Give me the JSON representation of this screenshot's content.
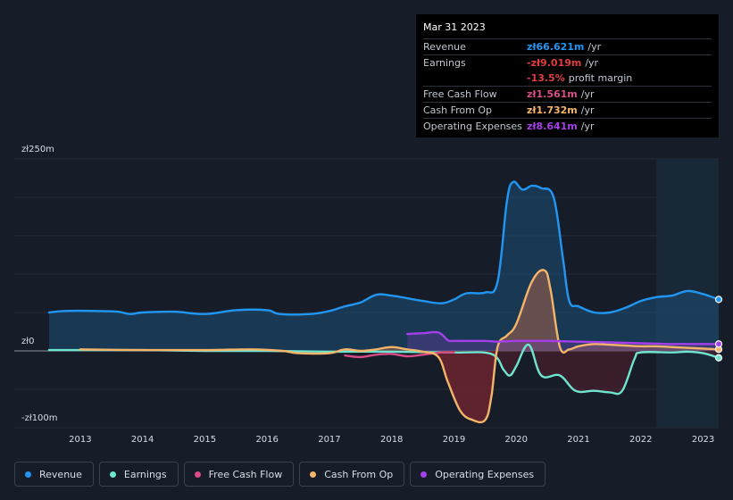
{
  "tooltip": {
    "date": "Mar 31 2023",
    "rows": [
      {
        "label": "Revenue",
        "value": "zł66.621m",
        "unit": "/yr",
        "color": "#2196f3"
      },
      {
        "label": "Earnings",
        "value": "-zł9.019m",
        "unit": "/yr",
        "color": "#e23d3d"
      },
      {
        "label": "",
        "value": "-13.5%",
        "unit": "profit margin",
        "color": "#e23d3d"
      },
      {
        "label": "Free Cash Flow",
        "value": "zł1.561m",
        "unit": "/yr",
        "color": "#d94c86"
      },
      {
        "label": "Cash From Op",
        "value": "zł1.732m",
        "unit": "/yr",
        "color": "#f4b56a"
      },
      {
        "label": "Operating Expenses",
        "value": "zł8.641m",
        "unit": "/yr",
        "color": "#a43fea"
      }
    ]
  },
  "legend": [
    {
      "label": "Revenue",
      "color": "#2196f3"
    },
    {
      "label": "Earnings",
      "color": "#6ee6cf"
    },
    {
      "label": "Free Cash Flow",
      "color": "#d94c86"
    },
    {
      "label": "Cash From Op",
      "color": "#f4b56a"
    },
    {
      "label": "Operating Expenses",
      "color": "#a43fea"
    }
  ],
  "chart_data": {
    "type": "area",
    "title": "",
    "xlabel": "",
    "ylabel": "",
    "ylim": [
      -100,
      250
    ],
    "xlim": [
      2012.4,
      2023.25
    ],
    "y_tick_labels": [
      {
        "label": "zł250m",
        "value": 250
      },
      {
        "label": "zł0",
        "value": 0
      },
      {
        "label": "-zł100m",
        "value": -100
      }
    ],
    "x_ticks": [
      {
        "label": "2013",
        "value": 2013
      },
      {
        "label": "2014",
        "value": 2014
      },
      {
        "label": "2015",
        "value": 2015
      },
      {
        "label": "2016",
        "value": 2016
      },
      {
        "label": "2017",
        "value": 2017
      },
      {
        "label": "2018",
        "value": 2018
      },
      {
        "label": "2019",
        "value": 2019
      },
      {
        "label": "2020",
        "value": 2020
      },
      {
        "label": "2021",
        "value": 2021
      },
      {
        "label": "2022",
        "value": 2022
      },
      {
        "label": "2023",
        "value": 2023
      }
    ],
    "highlight_start": 2022.25,
    "series": [
      {
        "name": "Revenue",
        "color": "#2196f3",
        "points": [
          [
            2012.5,
            50
          ],
          [
            2012.75,
            52
          ],
          [
            2013.25,
            52
          ],
          [
            2013.6,
            51
          ],
          [
            2013.8,
            48
          ],
          [
            2014.0,
            50
          ],
          [
            2014.5,
            51
          ],
          [
            2015.0,
            48
          ],
          [
            2015.5,
            53
          ],
          [
            2016.0,
            53
          ],
          [
            2016.2,
            48
          ],
          [
            2016.7,
            48
          ],
          [
            2017.0,
            52
          ],
          [
            2017.25,
            58
          ],
          [
            2017.5,
            63
          ],
          [
            2017.75,
            73
          ],
          [
            2018.0,
            72
          ],
          [
            2018.5,
            65
          ],
          [
            2018.8,
            62
          ],
          [
            2019.0,
            67
          ],
          [
            2019.2,
            75
          ],
          [
            2019.5,
            76
          ],
          [
            2019.7,
            90
          ],
          [
            2019.85,
            195
          ],
          [
            2019.95,
            220
          ],
          [
            2020.1,
            210
          ],
          [
            2020.25,
            215
          ],
          [
            2020.4,
            212
          ],
          [
            2020.6,
            200
          ],
          [
            2020.75,
            120
          ],
          [
            2020.85,
            65
          ],
          [
            2021.0,
            58
          ],
          [
            2021.25,
            50
          ],
          [
            2021.5,
            50
          ],
          [
            2021.75,
            56
          ],
          [
            2022.0,
            65
          ],
          [
            2022.25,
            70
          ],
          [
            2022.5,
            72
          ],
          [
            2022.75,
            78
          ],
          [
            2023.0,
            74
          ],
          [
            2023.25,
            67
          ]
        ]
      },
      {
        "name": "Earnings",
        "color": "#6ee6cf",
        "points": [
          [
            2012.5,
            1
          ],
          [
            2013.0,
            1
          ],
          [
            2014.0,
            1
          ],
          [
            2015.0,
            0
          ],
          [
            2016.0,
            0
          ],
          [
            2017.0,
            -1
          ],
          [
            2018.0,
            -1
          ],
          [
            2019.0,
            -2
          ],
          [
            2019.6,
            -4
          ],
          [
            2019.8,
            -25
          ],
          [
            2019.9,
            -32
          ],
          [
            2020.0,
            -20
          ],
          [
            2020.2,
            8
          ],
          [
            2020.4,
            -32
          ],
          [
            2020.7,
            -32
          ],
          [
            2020.95,
            -52
          ],
          [
            2021.25,
            -52
          ],
          [
            2021.5,
            -54
          ],
          [
            2021.7,
            -52
          ],
          [
            2021.9,
            -10
          ],
          [
            2022.0,
            -2
          ],
          [
            2022.5,
            -2
          ],
          [
            2022.75,
            -1
          ],
          [
            2023.0,
            -3
          ],
          [
            2023.25,
            -9
          ]
        ]
      },
      {
        "name": "Free Cash Flow",
        "color": "#d94c86",
        "points": [
          [
            2017.25,
            -6
          ],
          [
            2017.5,
            -8
          ],
          [
            2017.75,
            -5
          ],
          [
            2018.0,
            -4
          ],
          [
            2018.25,
            -7
          ],
          [
            2018.5,
            -5
          ],
          [
            2018.8,
            -2
          ],
          [
            2019.0,
            -2
          ]
        ]
      },
      {
        "name": "Cash From Op",
        "color": "#f4b56a",
        "points": [
          [
            2013.0,
            2
          ],
          [
            2014.0,
            1
          ],
          [
            2015.0,
            1
          ],
          [
            2015.75,
            2
          ],
          [
            2016.25,
            0
          ],
          [
            2016.5,
            -3
          ],
          [
            2017.0,
            -3
          ],
          [
            2017.25,
            2
          ],
          [
            2017.5,
            0
          ],
          [
            2017.75,
            2
          ],
          [
            2018.0,
            5
          ],
          [
            2018.25,
            2
          ],
          [
            2018.5,
            -1
          ],
          [
            2018.75,
            -8
          ],
          [
            2018.9,
            -40
          ],
          [
            2019.1,
            -78
          ],
          [
            2019.3,
            -90
          ],
          [
            2019.5,
            -90
          ],
          [
            2019.6,
            -60
          ],
          [
            2019.7,
            5
          ],
          [
            2019.85,
            20
          ],
          [
            2020.0,
            35
          ],
          [
            2020.25,
            90
          ],
          [
            2020.45,
            105
          ],
          [
            2020.55,
            80
          ],
          [
            2020.7,
            5
          ],
          [
            2020.85,
            2
          ],
          [
            2021.0,
            6
          ],
          [
            2021.25,
            9
          ],
          [
            2021.5,
            8
          ],
          [
            2021.75,
            7
          ],
          [
            2022.0,
            6
          ],
          [
            2022.25,
            6
          ],
          [
            2022.5,
            5
          ],
          [
            2022.75,
            4
          ],
          [
            2023.0,
            3
          ],
          [
            2023.25,
            2
          ]
        ]
      },
      {
        "name": "Operating Expenses",
        "color": "#a43fea",
        "points": [
          [
            2018.25,
            22
          ],
          [
            2018.5,
            23
          ],
          [
            2018.75,
            24
          ],
          [
            2018.9,
            14
          ],
          [
            2019.0,
            13
          ],
          [
            2019.5,
            13
          ],
          [
            2019.7,
            12
          ],
          [
            2020.0,
            13
          ],
          [
            2020.5,
            13
          ],
          [
            2021.0,
            12
          ],
          [
            2021.5,
            11
          ],
          [
            2022.0,
            10
          ],
          [
            2022.5,
            9
          ],
          [
            2023.0,
            9
          ],
          [
            2023.25,
            9
          ]
        ]
      }
    ]
  }
}
